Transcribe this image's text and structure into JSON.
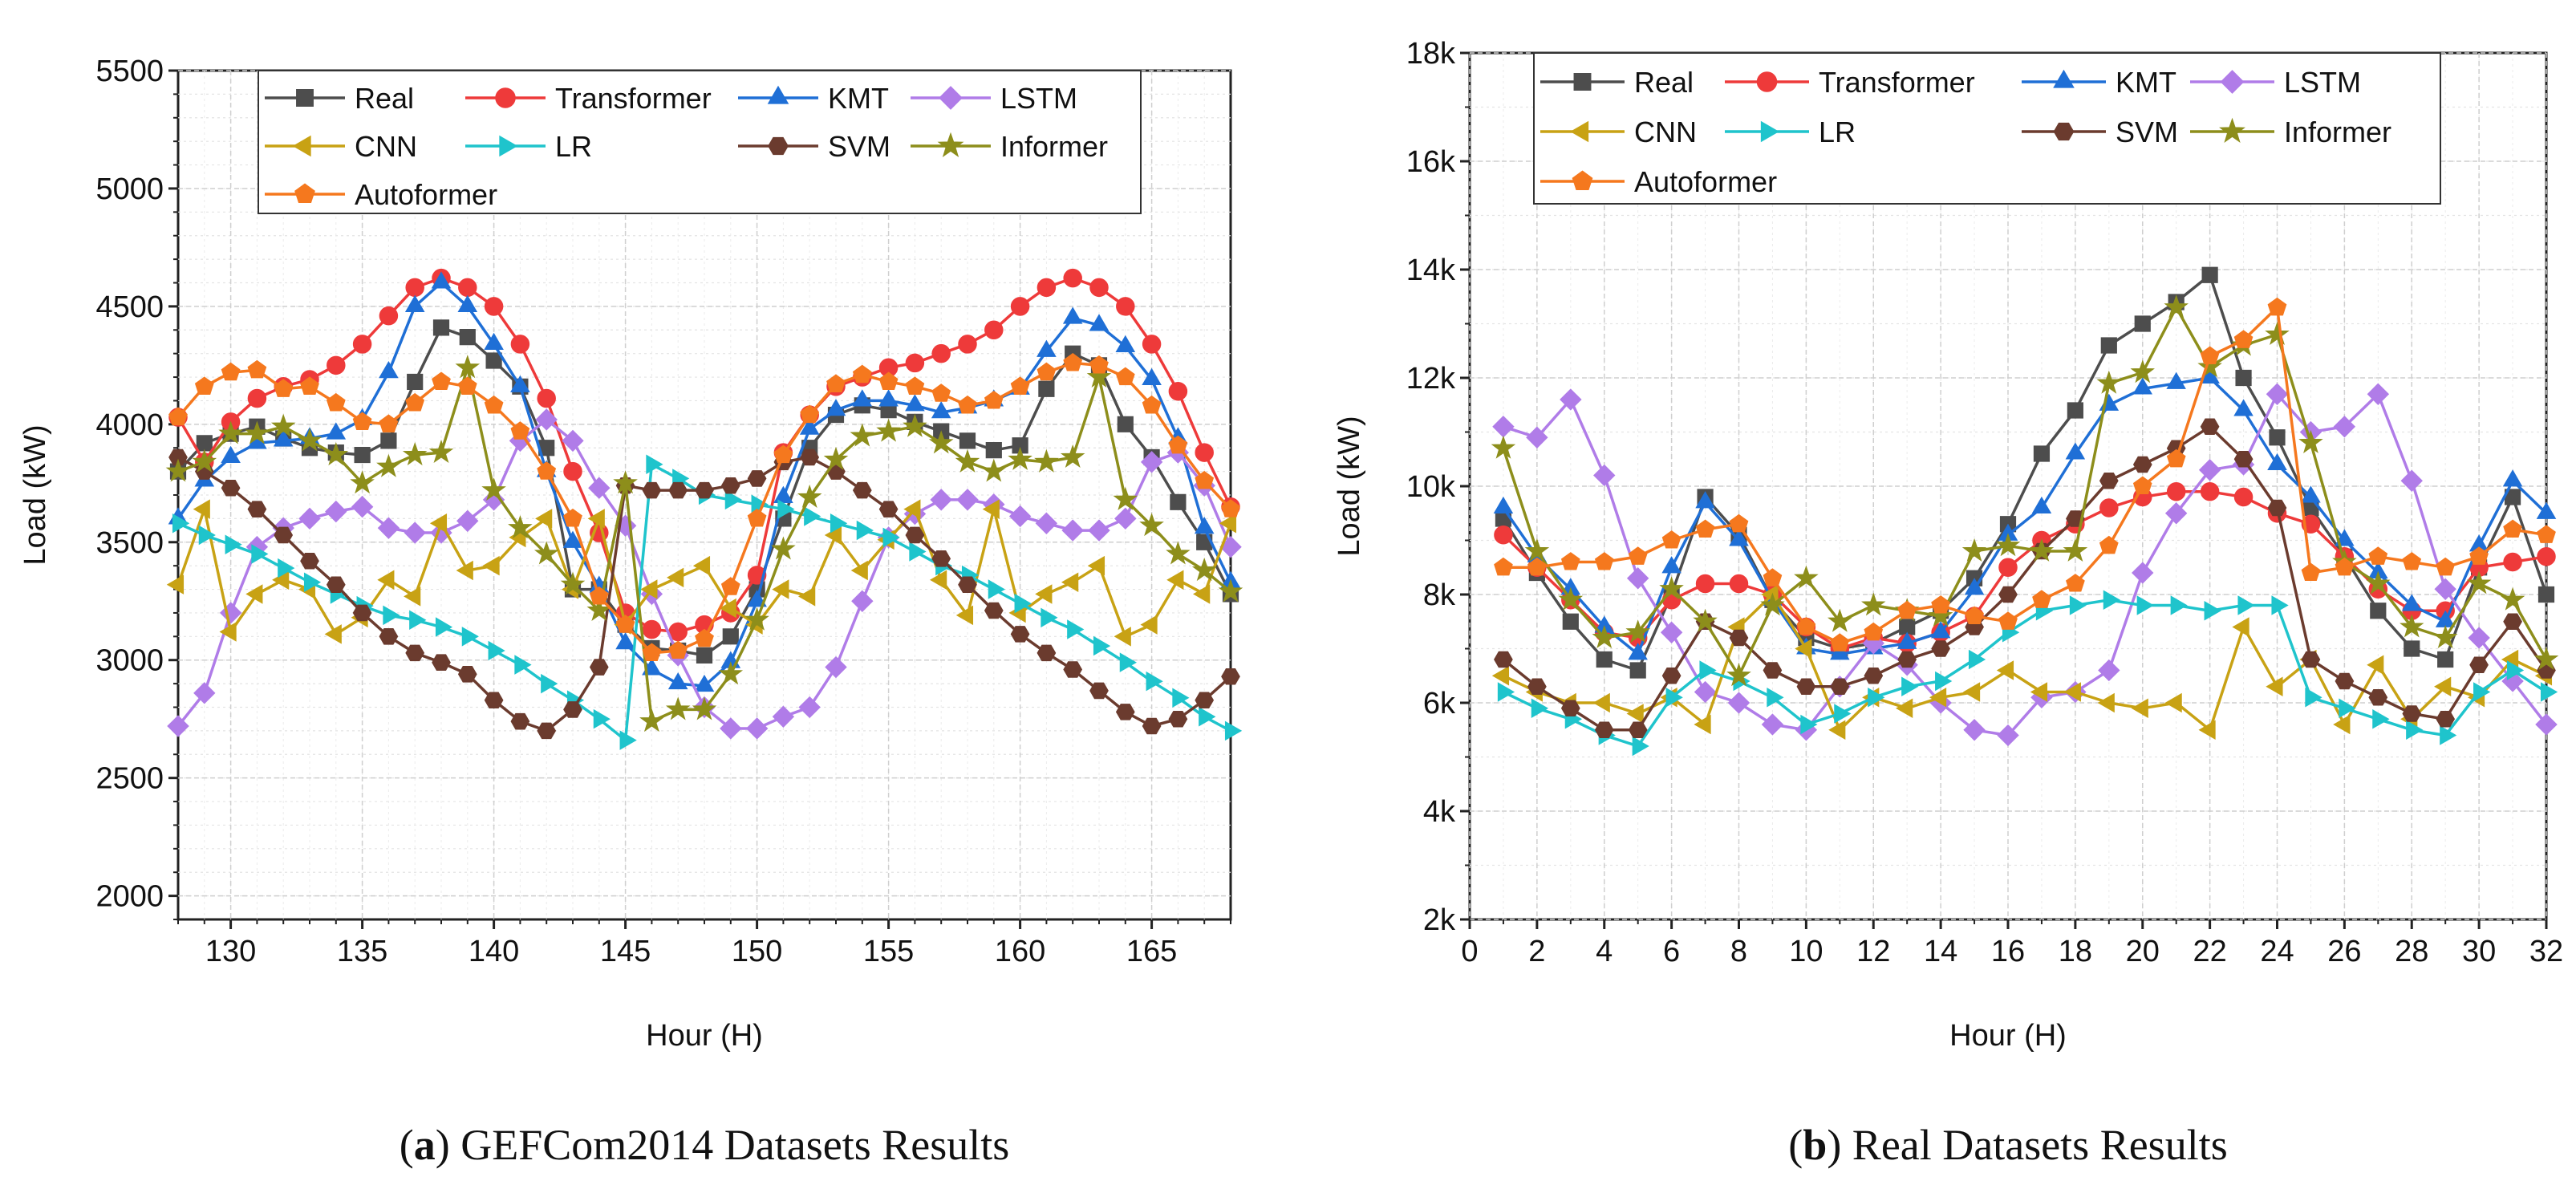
{
  "chart_data": [
    {
      "type": "line",
      "xlabel": "Hour (H)",
      "ylabel": "Load (kW)",
      "xlim": [
        128,
        168
      ],
      "ylim": [
        1900,
        5500
      ],
      "xticks": [
        130,
        135,
        140,
        145,
        150,
        155,
        160,
        165
      ],
      "xtick_labels": [
        "130",
        "135",
        "140",
        "145",
        "150",
        "155",
        "160",
        "165"
      ],
      "yticks": [
        2000,
        2500,
        3000,
        3500,
        4000,
        4500,
        5000,
        5500
      ],
      "ytick_labels": [
        "2000",
        "2500",
        "3000",
        "3500",
        "4000",
        "4500",
        "5000",
        "5500"
      ],
      "caption_letter": "a",
      "caption_text": "GEFCom2014 Datasets Results",
      "x": [
        128,
        129,
        130,
        131,
        132,
        133,
        134,
        135,
        136,
        137,
        138,
        139,
        140,
        141,
        142,
        143,
        144,
        145,
        146,
        147,
        148,
        149,
        150,
        151,
        152,
        153,
        154,
        155,
        156,
        157,
        158,
        159,
        160,
        161,
        162,
        163,
        164,
        165,
        166,
        167,
        168
      ],
      "series": [
        {
          "name": "Real",
          "values": [
            3800,
            3920,
            3960,
            3990,
            3940,
            3900,
            3880,
            3870,
            3930,
            4180,
            4410,
            4370,
            4270,
            4160,
            3900,
            3300,
            3300,
            3150,
            3050,
            3040,
            3020,
            3100,
            3300,
            3600,
            3900,
            4040,
            4080,
            4060,
            4010,
            3970,
            3930,
            3890,
            3910,
            4150,
            4300,
            4250,
            4000,
            3860,
            3670,
            3500,
            3280
          ]
        },
        {
          "name": "Transformer",
          "values": [
            4030,
            3840,
            4010,
            4110,
            4160,
            4190,
            4250,
            4340,
            4460,
            4580,
            4620,
            4580,
            4500,
            4340,
            4110,
            3800,
            3540,
            3200,
            3130,
            3120,
            3150,
            3200,
            3360,
            3880,
            4040,
            4160,
            4200,
            4240,
            4260,
            4300,
            4340,
            4400,
            4500,
            4580,
            4620,
            4580,
            4500,
            4340,
            4140,
            3880,
            3650
          ]
        },
        {
          "name": "KMT",
          "values": [
            3600,
            3760,
            3860,
            3920,
            3930,
            3940,
            3960,
            4020,
            4220,
            4500,
            4600,
            4500,
            4340,
            4160,
            3800,
            3500,
            3310,
            3070,
            2960,
            2900,
            2890,
            2990,
            3250,
            3690,
            3980,
            4060,
            4100,
            4100,
            4080,
            4050,
            4070,
            4100,
            4150,
            4310,
            4450,
            4420,
            4330,
            4190,
            3940,
            3560,
            3330
          ]
        },
        {
          "name": "LSTM",
          "values": [
            2720,
            2860,
            3200,
            3480,
            3560,
            3600,
            3630,
            3650,
            3560,
            3540,
            3540,
            3590,
            3680,
            3930,
            4020,
            3930,
            3730,
            3570,
            3280,
            3020,
            2800,
            2710,
            2710,
            2760,
            2800,
            2970,
            3250,
            3520,
            3620,
            3680,
            3680,
            3660,
            3610,
            3580,
            3550,
            3550,
            3600,
            3840,
            3880,
            3740,
            3480
          ]
        },
        {
          "name": "CNN",
          "values": [
            3320,
            3640,
            3120,
            3280,
            3340,
            3300,
            3110,
            3180,
            3340,
            3270,
            3580,
            3380,
            3400,
            3520,
            3600,
            3300,
            3600,
            3150,
            3300,
            3350,
            3400,
            3220,
            3150,
            3300,
            3270,
            3530,
            3380,
            3510,
            3640,
            3340,
            3190,
            3640,
            3200,
            3280,
            3330,
            3400,
            3100,
            3150,
            3340,
            3280,
            3580
          ]
        },
        {
          "name": "LR",
          "values": [
            3580,
            3530,
            3490,
            3450,
            3390,
            3330,
            3280,
            3230,
            3190,
            3170,
            3140,
            3100,
            3040,
            2980,
            2900,
            2830,
            2750,
            2660,
            3830,
            3770,
            3700,
            3680,
            3660,
            3640,
            3610,
            3580,
            3550,
            3520,
            3460,
            3400,
            3360,
            3300,
            3240,
            3180,
            3130,
            3060,
            2990,
            2910,
            2840,
            2760,
            2700
          ]
        },
        {
          "name": "SVM",
          "values": [
            3860,
            3800,
            3730,
            3640,
            3530,
            3420,
            3320,
            3200,
            3100,
            3030,
            2990,
            2940,
            2830,
            2740,
            2700,
            2790,
            2970,
            3740,
            3720,
            3720,
            3720,
            3740,
            3770,
            3840,
            3860,
            3800,
            3720,
            3640,
            3530,
            3430,
            3320,
            3210,
            3110,
            3030,
            2960,
            2870,
            2780,
            2720,
            2750,
            2830,
            2930
          ]
        },
        {
          "name": "Informer",
          "values": [
            3800,
            3840,
            3960,
            3960,
            3990,
            3930,
            3870,
            3750,
            3820,
            3870,
            3880,
            4240,
            3720,
            3560,
            3450,
            3320,
            3210,
            3750,
            2740,
            2790,
            2790,
            2940,
            3170,
            3470,
            3690,
            3850,
            3950,
            3970,
            3990,
            3920,
            3840,
            3800,
            3850,
            3840,
            3860,
            4200,
            3680,
            3570,
            3450,
            3380,
            3290
          ]
        },
        {
          "name": "Autoformer",
          "values": [
            4030,
            4160,
            4220,
            4230,
            4150,
            4160,
            4090,
            4010,
            4000,
            4090,
            4180,
            4160,
            4080,
            3970,
            3800,
            3600,
            3270,
            3150,
            3030,
            3040,
            3090,
            3310,
            3600,
            3870,
            4040,
            4170,
            4210,
            4180,
            4160,
            4130,
            4080,
            4100,
            4160,
            4220,
            4260,
            4250,
            4200,
            4080,
            3910,
            3760,
            3640
          ]
        }
      ]
    },
    {
      "type": "line",
      "xlabel": "Hour (H)",
      "ylabel": "Load (kW)",
      "xlim": [
        0,
        32
      ],
      "ylim": [
        2000,
        18000
      ],
      "xticks": [
        0,
        2,
        4,
        6,
        8,
        10,
        12,
        14,
        16,
        18,
        20,
        22,
        24,
        26,
        28,
        30,
        32
      ],
      "xtick_labels": [
        "0",
        "2",
        "4",
        "6",
        "8",
        "10",
        "12",
        "14",
        "16",
        "18",
        "20",
        "22",
        "24",
        "26",
        "28",
        "30",
        "32"
      ],
      "yticks": [
        2000,
        4000,
        6000,
        8000,
        10000,
        12000,
        14000,
        16000,
        18000
      ],
      "ytick_labels": [
        "2k",
        "4k",
        "6k",
        "8k",
        "10k",
        "12k",
        "14k",
        "16k",
        "18k"
      ],
      "caption_letter": "b",
      "caption_text": "Real Datasets Results",
      "x": [
        1,
        2,
        3,
        4,
        5,
        6,
        7,
        8,
        9,
        10,
        11,
        12,
        13,
        14,
        15,
        16,
        17,
        18,
        19,
        20,
        21,
        22,
        23,
        24,
        25,
        26,
        27,
        28,
        29,
        30,
        31,
        32
      ],
      "series": [
        {
          "name": "Real",
          "values": [
            9400,
            8400,
            7500,
            6800,
            6600,
            8000,
            9800,
            9100,
            7900,
            7200,
            7000,
            7100,
            7400,
            7700,
            8300,
            9300,
            10600,
            11400,
            12600,
            13000,
            13400,
            13900,
            12000,
            10900,
            9600,
            8700,
            7700,
            7000,
            6800,
            8500,
            9800,
            8000
          ]
        },
        {
          "name": "Transformer",
          "values": [
            9100,
            8500,
            7900,
            7300,
            7200,
            7900,
            8200,
            8200,
            8000,
            7400,
            7000,
            7200,
            7100,
            7300,
            7600,
            8500,
            9000,
            9300,
            9600,
            9800,
            9900,
            9900,
            9800,
            9500,
            9300,
            8700,
            8100,
            7700,
            7700,
            8500,
            8600,
            8700
          ]
        },
        {
          "name": "KMT",
          "values": [
            9600,
            8700,
            8100,
            7400,
            6900,
            8500,
            9700,
            9000,
            7900,
            7000,
            6900,
            7000,
            7100,
            7300,
            8100,
            9100,
            9600,
            10600,
            11500,
            11800,
            11900,
            12000,
            11400,
            10400,
            9800,
            9000,
            8400,
            7800,
            7500,
            8900,
            10100,
            9500
          ]
        },
        {
          "name": "LSTM",
          "values": [
            11100,
            10900,
            11600,
            10200,
            8300,
            7300,
            6200,
            6000,
            5600,
            5500,
            6300,
            7100,
            6700,
            6000,
            5500,
            5400,
            6100,
            6200,
            6600,
            8400,
            9500,
            10300,
            10400,
            11700,
            11000,
            11100,
            11700,
            10100,
            8100,
            7200,
            6400,
            5600
          ]
        },
        {
          "name": "CNN",
          "values": [
            6500,
            6200,
            6000,
            6000,
            5800,
            6100,
            5600,
            7400,
            8000,
            7000,
            5500,
            6100,
            5900,
            6100,
            6200,
            6600,
            6200,
            6200,
            6000,
            5900,
            6000,
            5500,
            7400,
            6300,
            6800,
            5600,
            6700,
            5700,
            6300,
            6100,
            6800,
            6500
          ]
        },
        {
          "name": "LR",
          "values": [
            6200,
            5900,
            5700,
            5400,
            5200,
            6100,
            6600,
            6400,
            6100,
            5600,
            5800,
            6100,
            6300,
            6400,
            6800,
            7300,
            7700,
            7800,
            7900,
            7800,
            7800,
            7700,
            7800,
            7800,
            6100,
            5900,
            5700,
            5500,
            5400,
            6200,
            6600,
            6200
          ]
        },
        {
          "name": "SVM",
          "values": [
            6800,
            6300,
            5900,
            5500,
            5500,
            6500,
            7500,
            7200,
            6600,
            6300,
            6300,
            6500,
            6800,
            7000,
            7400,
            8000,
            8800,
            9400,
            10100,
            10400,
            10700,
            11100,
            10500,
            9600,
            6800,
            6400,
            6100,
            5800,
            5700,
            6700,
            7500,
            6600
          ]
        },
        {
          "name": "Informer",
          "values": [
            10700,
            8800,
            7900,
            7200,
            7300,
            8100,
            7500,
            6500,
            7800,
            8300,
            7500,
            7800,
            7700,
            7600,
            8800,
            8900,
            8800,
            8800,
            11900,
            12100,
            13300,
            12200,
            12600,
            12800,
            10800,
            8600,
            8200,
            7400,
            7200,
            8200,
            7900,
            6800
          ]
        },
        {
          "name": "Autoformer",
          "values": [
            8500,
            8500,
            8600,
            8600,
            8700,
            9000,
            9200,
            9300,
            8300,
            7400,
            7100,
            7300,
            7700,
            7800,
            7600,
            7500,
            7900,
            8200,
            8900,
            10000,
            10500,
            12400,
            12700,
            13300,
            8400,
            8500,
            8700,
            8600,
            8500,
            8700,
            9200,
            9100
          ]
        }
      ]
    }
  ],
  "legend_entries": [
    "Real",
    "Transformer",
    "KMT",
    "LSTM",
    "CNN",
    "LR",
    "SVM",
    "Informer",
    "Autoformer"
  ],
  "colors": {
    "Real": "#4d4d4d",
    "Transformer": "#ee3a3a",
    "KMT": "#1f6fd6",
    "LSTM": "#b07ce8",
    "CNN": "#c8a214",
    "LR": "#1fc4cc",
    "SVM": "#6b3b2e",
    "Informer": "#8d8e1b",
    "Autoformer": "#f5781e"
  },
  "markers": {
    "Real": "square",
    "Transformer": "circle",
    "KMT": "triangle-up",
    "LSTM": "diamond",
    "CNN": "triangle-left",
    "LR": "triangle-right",
    "SVM": "hexagon",
    "Informer": "star",
    "Autoformer": "pentagon"
  }
}
